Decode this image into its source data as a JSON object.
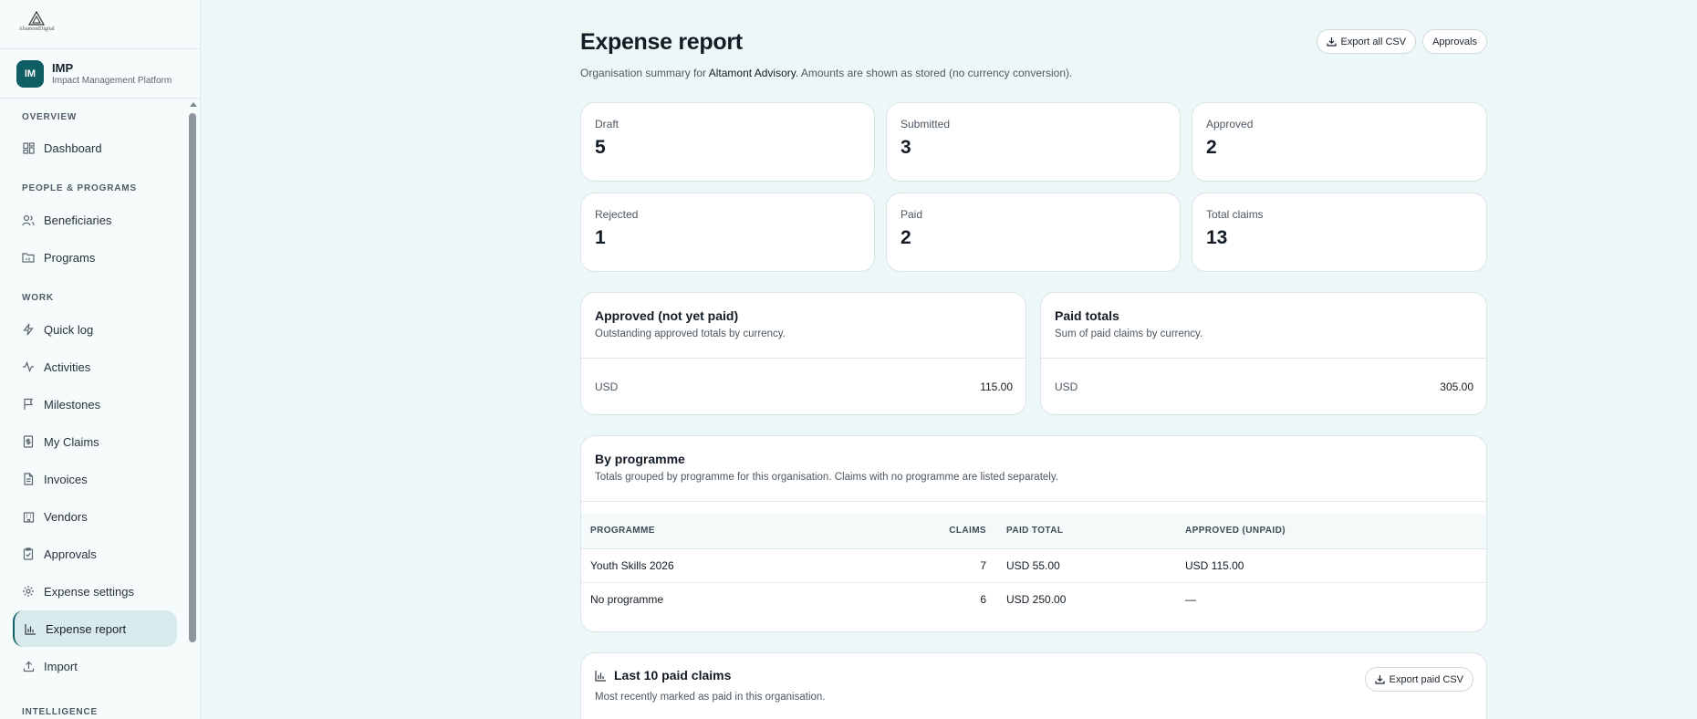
{
  "brand": {
    "logo_text": "AltamontDigital"
  },
  "org": {
    "initials": "IM",
    "name": "IMP",
    "subtitle": "Impact Management Platform"
  },
  "sidebar": {
    "sections": [
      {
        "label": "OVERVIEW"
      },
      {
        "label": "PEOPLE & PROGRAMS"
      },
      {
        "label": "WORK"
      },
      {
        "label": "INTELLIGENCE"
      }
    ],
    "items": [
      {
        "label": "Dashboard",
        "icon": "grid-icon"
      },
      {
        "label": "Beneficiaries",
        "icon": "users-icon"
      },
      {
        "label": "Programs",
        "icon": "folder-icon"
      },
      {
        "label": "Quick log",
        "icon": "bolt-icon"
      },
      {
        "label": "Activities",
        "icon": "pulse-icon"
      },
      {
        "label": "Milestones",
        "icon": "flag-icon"
      },
      {
        "label": "My Claims",
        "icon": "receipt-icon"
      },
      {
        "label": "Invoices",
        "icon": "file-icon"
      },
      {
        "label": "Vendors",
        "icon": "building-icon"
      },
      {
        "label": "Approvals",
        "icon": "clipboard-check-icon"
      },
      {
        "label": "Expense settings",
        "icon": "gear-icon"
      },
      {
        "label": "Expense report",
        "icon": "bar-chart-icon",
        "active": true
      },
      {
        "label": "Import",
        "icon": "upload-icon"
      }
    ]
  },
  "header": {
    "title": "Expense report",
    "subtitle_prefix": "Organisation summary for ",
    "subtitle_org": "Altamont Advisory",
    "subtitle_suffix": ". Amounts are shown as stored (no currency conversion).",
    "export_all_label": "Export all CSV",
    "approvals_label": "Approvals"
  },
  "stats": [
    {
      "label": "Draft",
      "value": "5"
    },
    {
      "label": "Submitted",
      "value": "3"
    },
    {
      "label": "Approved",
      "value": "2"
    },
    {
      "label": "Rejected",
      "value": "1"
    },
    {
      "label": "Paid",
      "value": "2"
    },
    {
      "label": "Total claims",
      "value": "13"
    }
  ],
  "approved_unpaid": {
    "title": "Approved (not yet paid)",
    "desc": "Outstanding approved totals by currency.",
    "currency": "USD",
    "amount": "115.00"
  },
  "paid_totals": {
    "title": "Paid totals",
    "desc": "Sum of paid claims by currency.",
    "currency": "USD",
    "amount": "305.00"
  },
  "by_programme": {
    "title": "By programme",
    "desc": "Totals grouped by programme for this organisation. Claims with no programme are listed separately.",
    "columns": [
      "PROGRAMME",
      "CLAIMS",
      "PAID TOTAL",
      "APPROVED (UNPAID)"
    ],
    "rows": [
      {
        "programme": "Youth Skills 2026",
        "claims": "7",
        "paid_total": "USD 55.00",
        "approved_unpaid": "USD 115.00"
      },
      {
        "programme": "No programme",
        "claims": "6",
        "paid_total": "USD 250.00",
        "approved_unpaid": "—"
      }
    ]
  },
  "last_paid": {
    "title": "Last 10 paid claims",
    "desc": "Most recently marked as paid in this organisation.",
    "export_label": "Export paid CSV"
  },
  "colors": {
    "accent": "#0e5e64",
    "background": "#eef7f8",
    "active_nav": "#d8eaec"
  }
}
